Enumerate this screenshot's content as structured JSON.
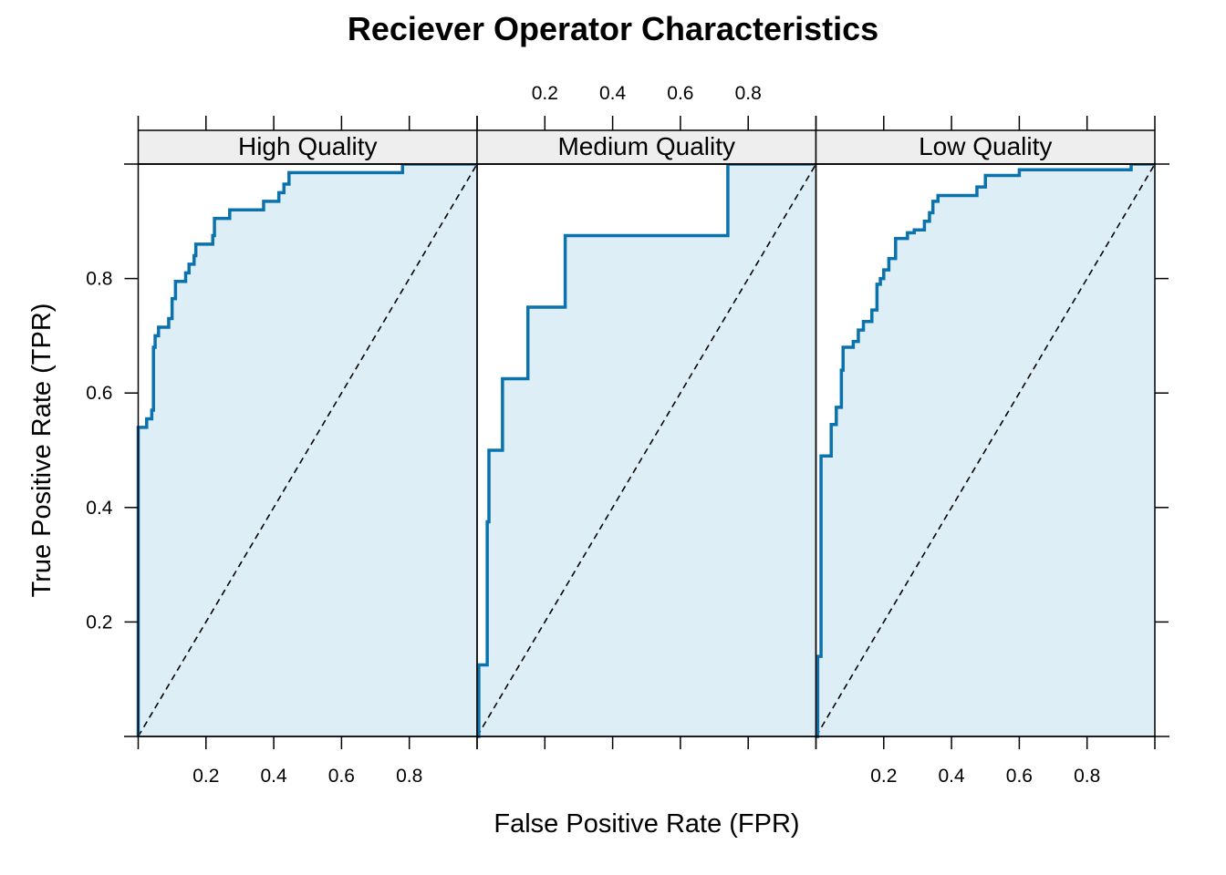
{
  "chart_data": {
    "type": "line",
    "title": "Reciever Operator Characteristics",
    "xlabel": "False Positive Rate (FPR)",
    "ylabel": "True Positive Rate (TPR)",
    "xlim": [
      0,
      1
    ],
    "ylim": [
      0,
      1
    ],
    "ticks": {
      "y": [
        0.2,
        0.4,
        0.6,
        0.8
      ],
      "y_labels": [
        "0.2",
        "0.4",
        "0.6",
        "0.8"
      ],
      "x": [
        0.2,
        0.4,
        0.6,
        0.8
      ],
      "x_labels": [
        "0.2",
        "0.4",
        "0.6",
        "0.8"
      ]
    },
    "colors": {
      "curve": "#0a72ad",
      "fill": "#deeef6",
      "strip": "#eeeeee",
      "diagonal": "#000000"
    },
    "reference_line": "diagonal y = x (dashed)",
    "panels": [
      {
        "label": "High Quality",
        "bottom_axis": true,
        "top_axis": false,
        "points": [
          [
            0,
            0
          ],
          [
            0,
            0.43
          ],
          [
            0,
            0.54
          ],
          [
            0.025,
            0.54
          ],
          [
            0.025,
            0.555
          ],
          [
            0.04,
            0.555
          ],
          [
            0.04,
            0.57
          ],
          [
            0.045,
            0.57
          ],
          [
            0.045,
            0.68
          ],
          [
            0.05,
            0.68
          ],
          [
            0.05,
            0.7
          ],
          [
            0.06,
            0.7
          ],
          [
            0.06,
            0.715
          ],
          [
            0.09,
            0.715
          ],
          [
            0.09,
            0.73
          ],
          [
            0.1,
            0.73
          ],
          [
            0.1,
            0.765
          ],
          [
            0.11,
            0.765
          ],
          [
            0.11,
            0.795
          ],
          [
            0.14,
            0.795
          ],
          [
            0.14,
            0.81
          ],
          [
            0.15,
            0.81
          ],
          [
            0.15,
            0.825
          ],
          [
            0.165,
            0.825
          ],
          [
            0.165,
            0.84
          ],
          [
            0.17,
            0.84
          ],
          [
            0.17,
            0.86
          ],
          [
            0.22,
            0.86
          ],
          [
            0.22,
            0.875
          ],
          [
            0.225,
            0.875
          ],
          [
            0.225,
            0.905
          ],
          [
            0.27,
            0.905
          ],
          [
            0.27,
            0.92
          ],
          [
            0.37,
            0.92
          ],
          [
            0.37,
            0.935
          ],
          [
            0.415,
            0.935
          ],
          [
            0.415,
            0.95
          ],
          [
            0.43,
            0.95
          ],
          [
            0.43,
            0.965
          ],
          [
            0.445,
            0.965
          ],
          [
            0.445,
            0.985
          ],
          [
            0.78,
            0.985
          ],
          [
            0.78,
            1
          ],
          [
            1,
            1
          ]
        ]
      },
      {
        "label": "Medium Quality",
        "bottom_axis": false,
        "top_axis": true,
        "points": [
          [
            0,
            0
          ],
          [
            0.005,
            0
          ],
          [
            0.005,
            0.125
          ],
          [
            0.03,
            0.125
          ],
          [
            0.03,
            0.375
          ],
          [
            0.035,
            0.375
          ],
          [
            0.035,
            0.5
          ],
          [
            0.075,
            0.5
          ],
          [
            0.075,
            0.625
          ],
          [
            0.15,
            0.625
          ],
          [
            0.15,
            0.75
          ],
          [
            0.26,
            0.75
          ],
          [
            0.26,
            0.875
          ],
          [
            0.74,
            0.875
          ],
          [
            0.74,
            1
          ],
          [
            1,
            1
          ]
        ]
      },
      {
        "label": "Low Quality",
        "bottom_axis": true,
        "top_axis": false,
        "points": [
          [
            0,
            0
          ],
          [
            0.005,
            0
          ],
          [
            0.005,
            0.14
          ],
          [
            0.015,
            0.14
          ],
          [
            0.015,
            0.49
          ],
          [
            0.045,
            0.49
          ],
          [
            0.045,
            0.545
          ],
          [
            0.06,
            0.545
          ],
          [
            0.06,
            0.575
          ],
          [
            0.075,
            0.575
          ],
          [
            0.075,
            0.64
          ],
          [
            0.08,
            0.64
          ],
          [
            0.08,
            0.68
          ],
          [
            0.11,
            0.68
          ],
          [
            0.11,
            0.69
          ],
          [
            0.125,
            0.69
          ],
          [
            0.125,
            0.71
          ],
          [
            0.14,
            0.71
          ],
          [
            0.14,
            0.725
          ],
          [
            0.165,
            0.725
          ],
          [
            0.165,
            0.745
          ],
          [
            0.18,
            0.745
          ],
          [
            0.18,
            0.79
          ],
          [
            0.19,
            0.79
          ],
          [
            0.19,
            0.8
          ],
          [
            0.2,
            0.8
          ],
          [
            0.2,
            0.815
          ],
          [
            0.215,
            0.815
          ],
          [
            0.215,
            0.835
          ],
          [
            0.235,
            0.835
          ],
          [
            0.235,
            0.87
          ],
          [
            0.27,
            0.87
          ],
          [
            0.27,
            0.88
          ],
          [
            0.29,
            0.88
          ],
          [
            0.29,
            0.885
          ],
          [
            0.32,
            0.885
          ],
          [
            0.32,
            0.9
          ],
          [
            0.335,
            0.9
          ],
          [
            0.335,
            0.915
          ],
          [
            0.345,
            0.915
          ],
          [
            0.345,
            0.935
          ],
          [
            0.36,
            0.935
          ],
          [
            0.36,
            0.945
          ],
          [
            0.475,
            0.945
          ],
          [
            0.475,
            0.96
          ],
          [
            0.5,
            0.96
          ],
          [
            0.5,
            0.98
          ],
          [
            0.6,
            0.98
          ],
          [
            0.6,
            0.99
          ],
          [
            0.93,
            0.99
          ],
          [
            0.93,
            1
          ],
          [
            1,
            1
          ]
        ]
      }
    ]
  }
}
